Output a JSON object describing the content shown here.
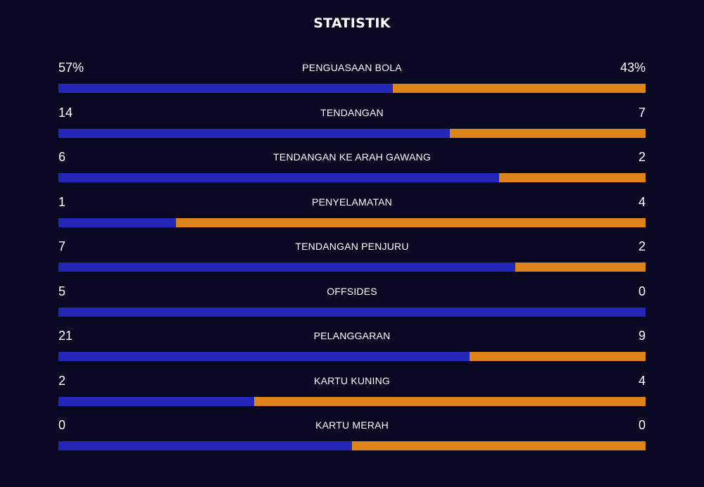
{
  "title": "STATISTIK",
  "colors": {
    "background": "#080822",
    "home": "#2328b8",
    "away": "#de8418",
    "text": "#ffffff"
  },
  "stats": [
    {
      "label": "PENGUASAAN BOLA",
      "home": "57%",
      "away": "43%",
      "home_value": 57,
      "away_value": 43
    },
    {
      "label": "TENDANGAN",
      "home": "14",
      "away": "7",
      "home_value": 14,
      "away_value": 7
    },
    {
      "label": "TENDANGAN KE ARAH GAWANG",
      "home": "6",
      "away": "2",
      "home_value": 6,
      "away_value": 2
    },
    {
      "label": "PENYELAMATAN",
      "home": "1",
      "away": "4",
      "home_value": 1,
      "away_value": 4
    },
    {
      "label": "TENDANGAN PENJURU",
      "home": "7",
      "away": "2",
      "home_value": 7,
      "away_value": 2
    },
    {
      "label": "OFFSIDES",
      "home": "5",
      "away": "0",
      "home_value": 5,
      "away_value": 0
    },
    {
      "label": "PELANGGARAN",
      "home": "21",
      "away": "9",
      "home_value": 21,
      "away_value": 9
    },
    {
      "label": "KARTU KUNING",
      "home": "2",
      "away": "4",
      "home_value": 2,
      "away_value": 4
    },
    {
      "label": "KARTU MERAH",
      "home": "0",
      "away": "0",
      "home_value": 0,
      "away_value": 0
    }
  ]
}
